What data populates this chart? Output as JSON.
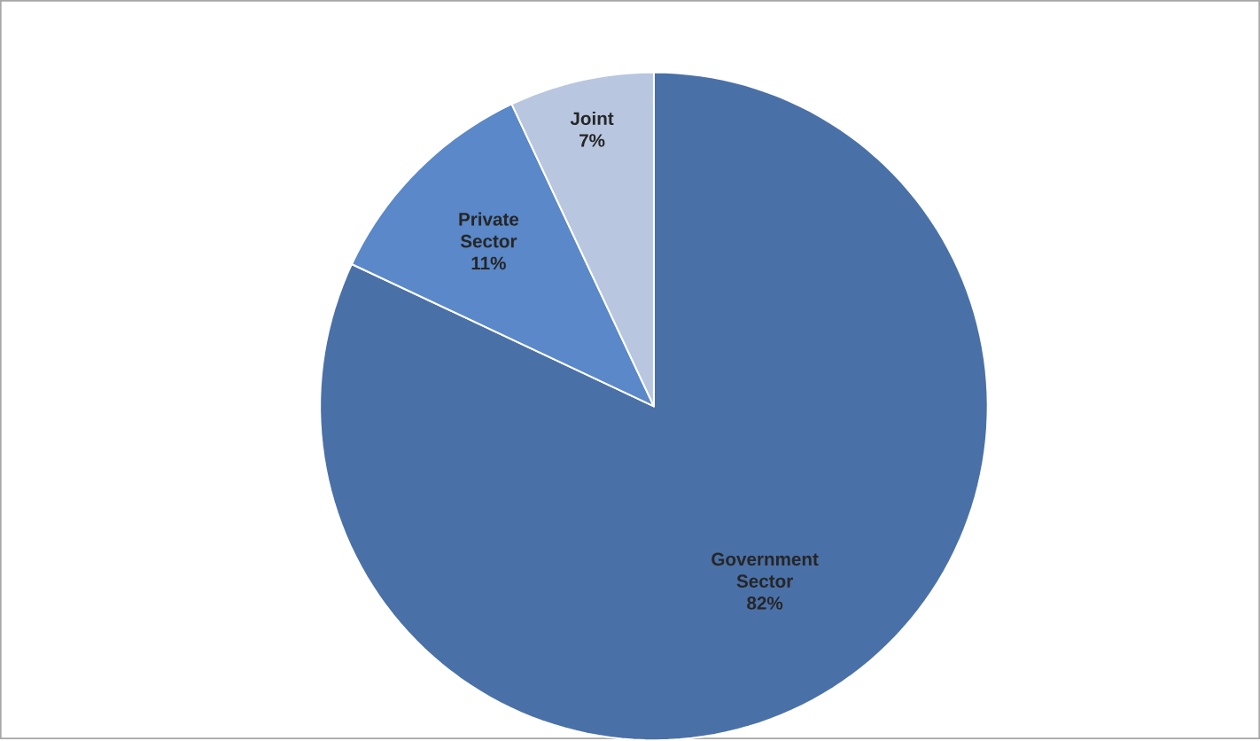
{
  "chart_data": {
    "type": "pie",
    "categories": [
      "Government Sector",
      "Private Sector",
      "Joint"
    ],
    "values": [
      82,
      11,
      7
    ],
    "value_labels": [
      "82%",
      "11%",
      "7%"
    ],
    "colors": [
      "#4a70a8",
      "#5a88c8",
      "#b8c6e0"
    ]
  }
}
